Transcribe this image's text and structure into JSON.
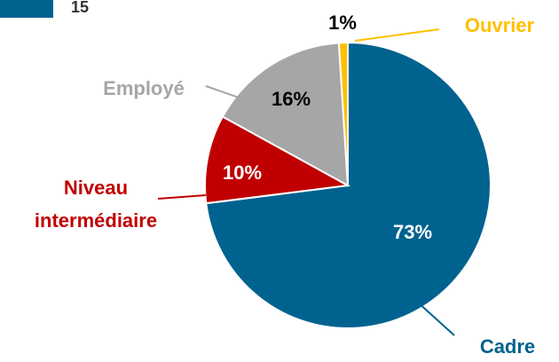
{
  "badge": "15",
  "chart_data": {
    "type": "pie",
    "categories": [
      "Cadre",
      "Niveau intermédiaire",
      "Employé",
      "Ouvrier"
    ],
    "values": [
      73,
      10,
      16,
      1
    ],
    "value_labels": [
      "73%",
      "10%",
      "16%",
      "1%"
    ],
    "colors": [
      "#00628f",
      "#c00000",
      "#a6a6a6",
      "#ffc000"
    ]
  }
}
